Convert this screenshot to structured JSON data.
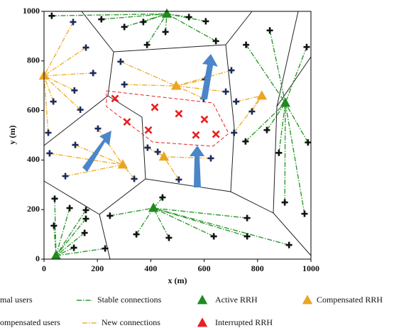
{
  "chart_data": {
    "type": "scatter",
    "xlabel": "x (m)",
    "ylabel": "y (m)",
    "xlim": [
      0,
      1000
    ],
    "ylim": [
      0,
      1000
    ],
    "xticks": [
      0,
      200,
      400,
      600,
      800,
      1000
    ],
    "yticks": [
      0,
      200,
      400,
      600,
      800,
      1000
    ],
    "series": [
      {
        "name": "mal users",
        "kind": "points",
        "marker": "plus",
        "color": "#111111",
        "x": [
          29,
          215,
          301,
          372,
          455,
          543,
          606,
          644,
          386,
          846,
          757,
          984,
          835,
          880,
          902,
          976,
          989,
          755,
          247,
          346,
          468,
          636,
          761,
          761,
          918,
          444,
          40,
          96,
          37,
          157,
          152,
          112,
          229,
          157
        ],
        "y": [
          982,
          968,
          937,
          957,
          917,
          977,
          960,
          880,
          865,
          923,
          865,
          856,
          521,
          429,
          229,
          183,
          471,
          475,
          175,
          100,
          86,
          92,
          166,
          92,
          57,
          249,
          244,
          206,
          135,
          163,
          106,
          46,
          43,
          198
        ]
      },
      {
        "name": "Stable connections",
        "kind": "line",
        "color": "#2e9a2e",
        "x": [
          29,
          460,
          null,
          215,
          460,
          null,
          301,
          460,
          null,
          372,
          460,
          null,
          455,
          460,
          null,
          543,
          460,
          null,
          606,
          460,
          null,
          644,
          460,
          null,
          386,
          460,
          null,
          846,
          904,
          null,
          757,
          904,
          null,
          984,
          904,
          null,
          835,
          904,
          null,
          880,
          904,
          null,
          902,
          904,
          null,
          976,
          904,
          null,
          989,
          904,
          null,
          755,
          904,
          null,
          247,
          410,
          null,
          346,
          410,
          null,
          468,
          410,
          null,
          636,
          410,
          null,
          761,
          410,
          null,
          761,
          410,
          null,
          918,
          410,
          null,
          444,
          410,
          null,
          40,
          45,
          null,
          96,
          45,
          null,
          37,
          45,
          null,
          157,
          45,
          null,
          152,
          45,
          null,
          112,
          45,
          null,
          229,
          45,
          null,
          157,
          45
        ],
        "y": [
          982,
          990,
          null,
          968,
          990,
          null,
          937,
          990,
          null,
          957,
          990,
          null,
          917,
          990,
          null,
          977,
          990,
          null,
          960,
          990,
          null,
          880,
          990,
          null,
          865,
          990,
          null,
          923,
          630,
          null,
          865,
          630,
          null,
          856,
          630,
          null,
          521,
          630,
          null,
          429,
          630,
          null,
          229,
          630,
          null,
          183,
          630,
          null,
          471,
          630,
          null,
          475,
          630,
          null,
          175,
          206,
          null,
          100,
          206,
          null,
          86,
          206,
          null,
          92,
          206,
          null,
          166,
          206,
          null,
          92,
          206,
          null,
          57,
          206,
          null,
          249,
          206,
          null,
          244,
          14,
          null,
          206,
          14,
          null,
          135,
          14,
          null,
          163,
          14,
          null,
          106,
          14,
          null,
          46,
          14,
          null,
          43,
          14,
          null,
          198,
          14
        ]
      },
      {
        "name": "Active RRH",
        "kind": "points",
        "marker": "triangle",
        "color": "#1f8a1f",
        "x": [
          460,
          904,
          410,
          45
        ],
        "y": [
          990,
          630,
          206,
          14
        ]
      },
      {
        "name": "Compensated RRH",
        "kind": "points",
        "marker": "triangle",
        "color": "#e8a623",
        "x": [
          0,
          495,
          816,
          295,
          449
        ],
        "y": [
          740,
          699,
          659,
          381,
          413
        ]
      },
      {
        "name": "ompensated users",
        "kind": "points",
        "marker": "plus",
        "color": "#1b2a5c",
        "x": [
          35,
          114,
          136,
          16,
          184,
          109,
          157,
          287,
          301,
          598,
          702,
          681,
          604,
          720,
          779,
          712,
          80,
          117,
          21,
          338,
          202,
          388,
          505,
          426,
          625
        ],
        "y": [
          636,
          681,
          603,
          510,
          751,
          957,
          854,
          797,
          705,
          648,
          762,
          676,
          725,
          636,
          596,
          510,
          335,
          461,
          427,
          324,
          527,
          450,
          321,
          433,
          407
        ]
      },
      {
        "name": "New connections",
        "kind": "line",
        "color": "#f0b030",
        "x": [
          35,
          0,
          null,
          114,
          0,
          null,
          136,
          0,
          null,
          16,
          0,
          null,
          184,
          0,
          null,
          109,
          0,
          null,
          157,
          0,
          null,
          287,
          495,
          null,
          301,
          495,
          null,
          598,
          495,
          null,
          702,
          495,
          null,
          681,
          495,
          null,
          604,
          495,
          null,
          720,
          816,
          null,
          779,
          816,
          null,
          712,
          816,
          null,
          80,
          295,
          null,
          117,
          295,
          null,
          21,
          295,
          null,
          338,
          295,
          null,
          202,
          295,
          null,
          388,
          449,
          null,
          505,
          449,
          null,
          426,
          449,
          null,
          625,
          449
        ],
        "y": [
          636,
          740,
          null,
          681,
          740,
          null,
          603,
          740,
          null,
          510,
          740,
          null,
          751,
          740,
          null,
          957,
          740,
          null,
          854,
          740,
          null,
          797,
          699,
          null,
          705,
          699,
          null,
          648,
          699,
          null,
          762,
          699,
          null,
          676,
          699,
          null,
          725,
          699,
          null,
          636,
          659,
          null,
          596,
          659,
          null,
          510,
          659,
          null,
          335,
          381,
          null,
          461,
          381,
          null,
          427,
          381,
          null,
          324,
          381,
          null,
          527,
          381,
          null,
          450,
          413,
          null,
          321,
          413,
          null,
          433,
          413,
          null,
          407,
          413
        ]
      },
      {
        "name": "Interrupted RRH",
        "kind": "points",
        "marker": "x",
        "color": "#e82020",
        "x": [
          266,
          415,
          505,
          601,
          311,
          391,
          569,
          644
        ],
        "y": [
          648,
          613,
          587,
          564,
          554,
          521,
          501,
          504
        ]
      }
    ]
  }
}
